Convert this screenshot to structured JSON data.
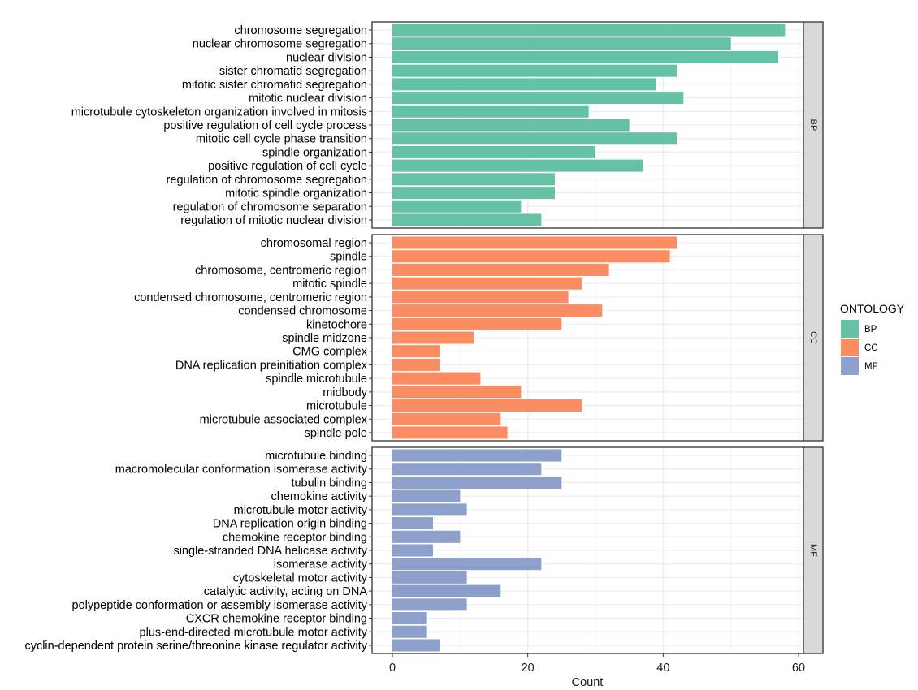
{
  "chart_data": {
    "type": "bar",
    "orientation": "horizontal",
    "title": "",
    "xlabel": "Count",
    "ylabel": "",
    "xlim": [
      0,
      61
    ],
    "xticks": [
      0,
      20,
      40,
      60
    ],
    "xtick_labels": [
      "0",
      "20",
      "40",
      "60"
    ],
    "grid": true,
    "legend": {
      "title": "ONTOLOGY",
      "placement": "right",
      "entries": [
        {
          "name": "BP",
          "color": "#66C2A5"
        },
        {
          "name": "CC",
          "color": "#FC8D62"
        },
        {
          "name": "MF",
          "color": "#8DA0CB"
        }
      ]
    },
    "facets": [
      {
        "name": "BP",
        "color": "#66C2A5",
        "categories": [
          "chromosome segregation",
          "nuclear chromosome segregation",
          "nuclear division",
          "sister chromatid segregation",
          "mitotic sister chromatid segregation",
          "mitotic nuclear division",
          "microtubule cytoskeleton organization involved in mitosis",
          "positive regulation of cell cycle process",
          "mitotic cell cycle phase transition",
          "spindle organization",
          "positive regulation of cell cycle",
          "regulation of chromosome segregation",
          "mitotic spindle organization",
          "regulation of chromosome separation",
          "regulation of mitotic nuclear division"
        ],
        "values": [
          58,
          50,
          57,
          42,
          39,
          43,
          29,
          35,
          42,
          30,
          37,
          24,
          24,
          19,
          22
        ]
      },
      {
        "name": "CC",
        "color": "#FC8D62",
        "categories": [
          "chromosomal region",
          "spindle",
          "chromosome, centromeric region",
          "mitotic spindle",
          "condensed chromosome, centromeric region",
          "condensed chromosome",
          "kinetochore",
          "spindle midzone",
          "CMG complex",
          "DNA replication preinitiation complex",
          "spindle microtubule",
          "midbody",
          "microtubule",
          "microtubule associated complex",
          "spindle pole"
        ],
        "values": [
          42,
          41,
          32,
          28,
          26,
          31,
          25,
          12,
          7,
          7,
          13,
          19,
          28,
          16,
          17
        ]
      },
      {
        "name": "MF",
        "color": "#8DA0CB",
        "categories": [
          "microtubule binding",
          "macromolecular conformation isomerase activity",
          "tubulin binding",
          "chemokine activity",
          "microtubule motor activity",
          "DNA replication origin binding",
          "chemokine receptor binding",
          "single-stranded DNA helicase activity",
          "isomerase activity",
          "cytoskeletal motor activity",
          "catalytic activity, acting on DNA",
          "polypeptide conformation or assembly isomerase activity",
          "CXCR chemokine receptor binding",
          "plus-end-directed microtubule motor activity",
          "cyclin-dependent protein serine/threonine kinase regulator activity"
        ],
        "values": [
          25,
          22,
          25,
          10,
          11,
          6,
          10,
          6,
          22,
          11,
          16,
          11,
          5,
          5,
          7
        ]
      }
    ]
  }
}
